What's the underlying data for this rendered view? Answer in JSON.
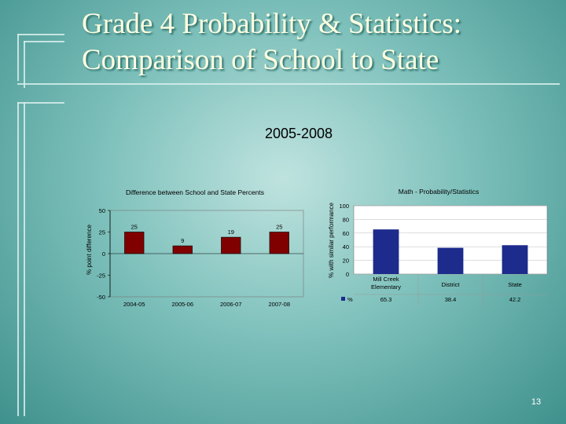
{
  "slide": {
    "title_line1": "Grade 4 Probability & Statistics:",
    "title_line2": "Comparison of School to State",
    "subtitle": "2005-2008",
    "page_number": "13"
  },
  "colors": {
    "left_bars": "#800000",
    "right_bars": "#1c2b8c",
    "title_text": "#ffffe0"
  },
  "chart_data": [
    {
      "type": "bar",
      "title": "Difference between School and State Percents",
      "xlabel": "",
      "ylabel": "% point difference",
      "categories": [
        "2004-05",
        "2005-06",
        "2006-07",
        "2007-08"
      ],
      "values": [
        25,
        9,
        19,
        25
      ],
      "data_labels": [
        "25",
        "9",
        "19",
        "25"
      ],
      "ylim": [
        -50,
        50
      ],
      "yticks": [
        50,
        25,
        0,
        -25,
        -50
      ],
      "ytick_labels": [
        "50",
        "25",
        "0",
        "-25",
        "-50"
      ],
      "grid": false,
      "legend": "none"
    },
    {
      "type": "bar",
      "title": "Math - Probability/Statistics",
      "xlabel": "",
      "ylabel": "% with similar performance",
      "categories": [
        "Mill Creek Elementary",
        "District",
        "State"
      ],
      "series": [
        {
          "name": "%",
          "values": [
            65.3,
            38.4,
            42.2
          ]
        }
      ],
      "data_labels": [
        "65.3",
        "38.4",
        "42.2"
      ],
      "ylim": [
        0,
        100
      ],
      "yticks": [
        100,
        80,
        60,
        40,
        20,
        0
      ],
      "ytick_labels": [
        "100",
        "80",
        "60",
        "40",
        "20",
        "0"
      ],
      "grid": true,
      "legend": "data-table-bottom"
    }
  ]
}
